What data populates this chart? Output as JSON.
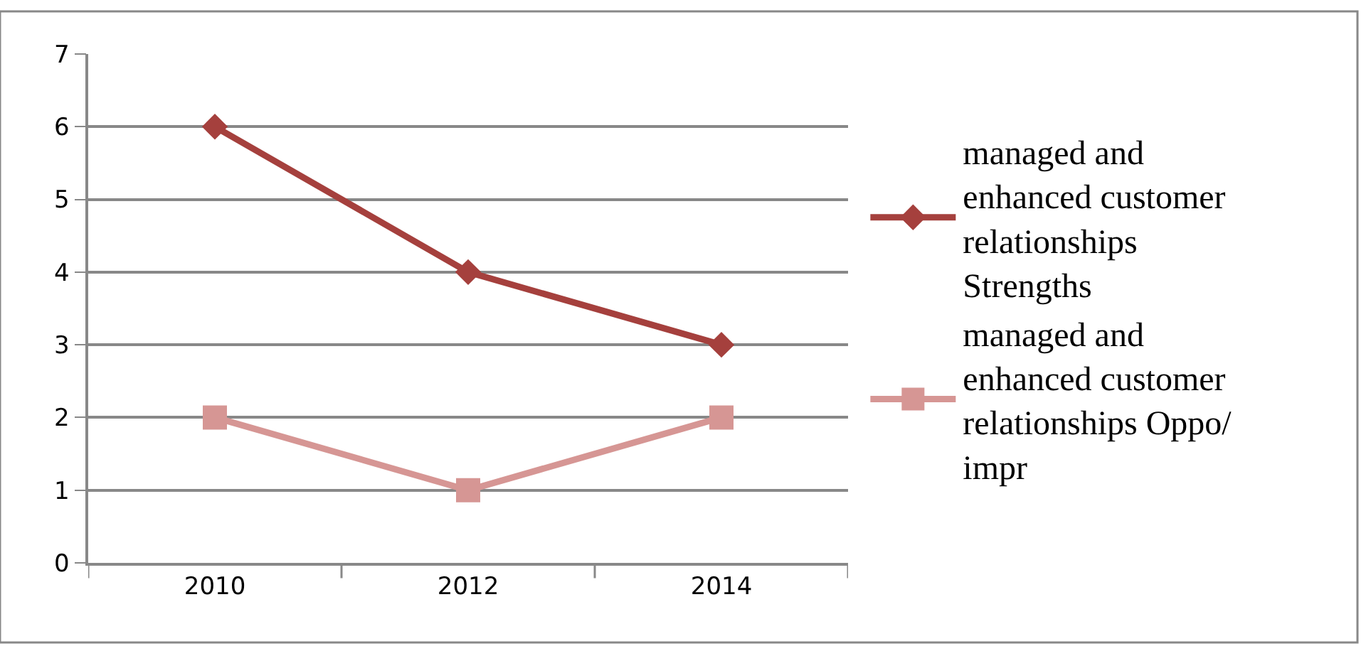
{
  "chart_data": {
    "type": "line",
    "categories": [
      "2010",
      "2012",
      "2014"
    ],
    "series": [
      {
        "name": "managed and enhanced customer relationships Strengths",
        "color": "#a5403d",
        "marker": "diamond",
        "values": [
          6,
          4,
          3
        ]
      },
      {
        "name": "managed and enhanced customer relationships Oppo/ impr",
        "color": "#d69694",
        "marker": "square",
        "values": [
          2,
          1,
          2
        ]
      }
    ],
    "ylim": [
      0,
      7
    ],
    "yticks": [
      0,
      1,
      2,
      3,
      4,
      5,
      6,
      7
    ],
    "grid": "y",
    "legend": "right",
    "line_style": "solid"
  }
}
